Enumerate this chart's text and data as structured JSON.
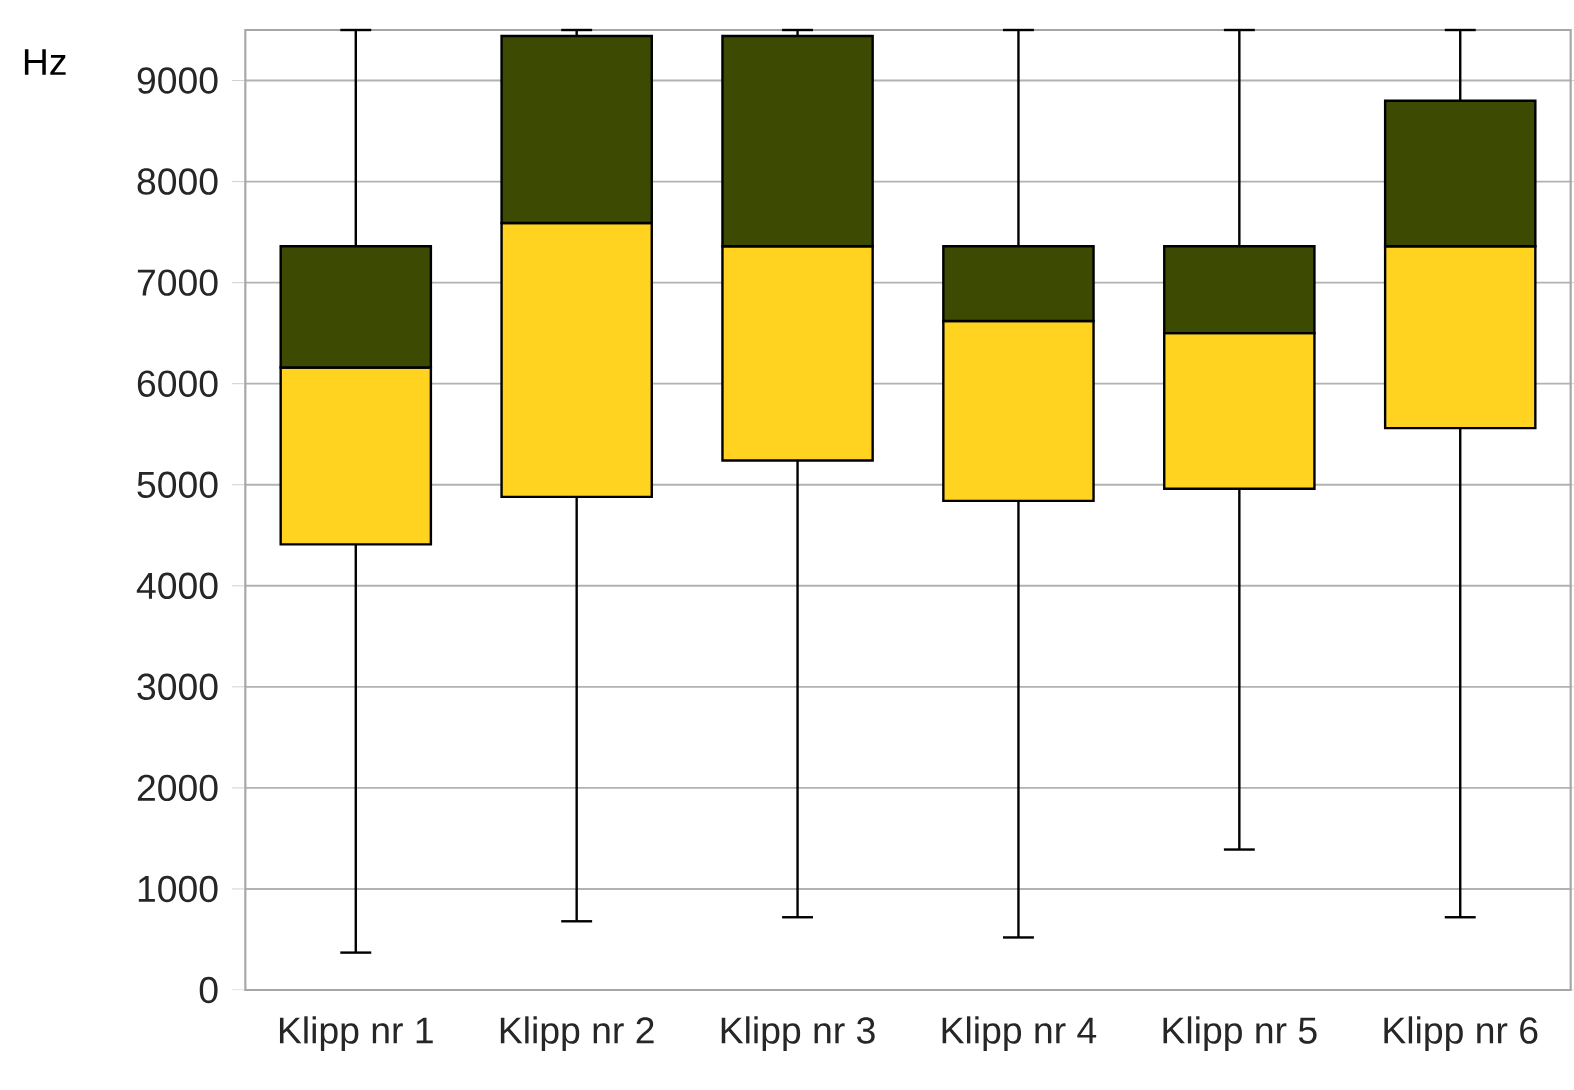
{
  "chart_data": {
    "type": "box",
    "ylabel": "Hz",
    "categories": [
      "Klipp nr 1",
      "Klipp nr 2",
      "Klipp nr 3",
      "Klipp nr 4",
      "Klipp nr 5",
      "Klipp nr 6"
    ],
    "colors": [
      [
        "#ffd320",
        "#3c4a02"
      ],
      [
        "#ffd320",
        "#3c4a02"
      ],
      [
        "#ffd320",
        "#3c4a02"
      ],
      [
        "#ffd320",
        "#3c4a02"
      ],
      [
        "#ffd320",
        "#3c4a02"
      ],
      [
        "#ffd320",
        "#3c4a02"
      ]
    ],
    "boxes": [
      {
        "low": 370,
        "q1": 4410,
        "median": 6160,
        "q3": 7360,
        "high": 9500
      },
      {
        "low": 680,
        "q1": 4880,
        "median": 7590,
        "q3": 9440,
        "high": 9500
      },
      {
        "low": 720,
        "q1": 5240,
        "median": 7360,
        "q3": 9440,
        "high": 9500
      },
      {
        "low": 520,
        "q1": 4840,
        "median": 6620,
        "q3": 7360,
        "high": 9500
      },
      {
        "low": 1390,
        "q1": 4960,
        "median": 6500,
        "q3": 7360,
        "high": 9500
      },
      {
        "low": 720,
        "q1": 5560,
        "median": 7360,
        "q3": 8800,
        "high": 9500
      }
    ],
    "ylim": [
      0,
      9500
    ],
    "yticks": [
      0,
      1000,
      2000,
      3000,
      4000,
      5000,
      6000,
      7000,
      8000,
      9000
    ],
    "grid": "y"
  }
}
